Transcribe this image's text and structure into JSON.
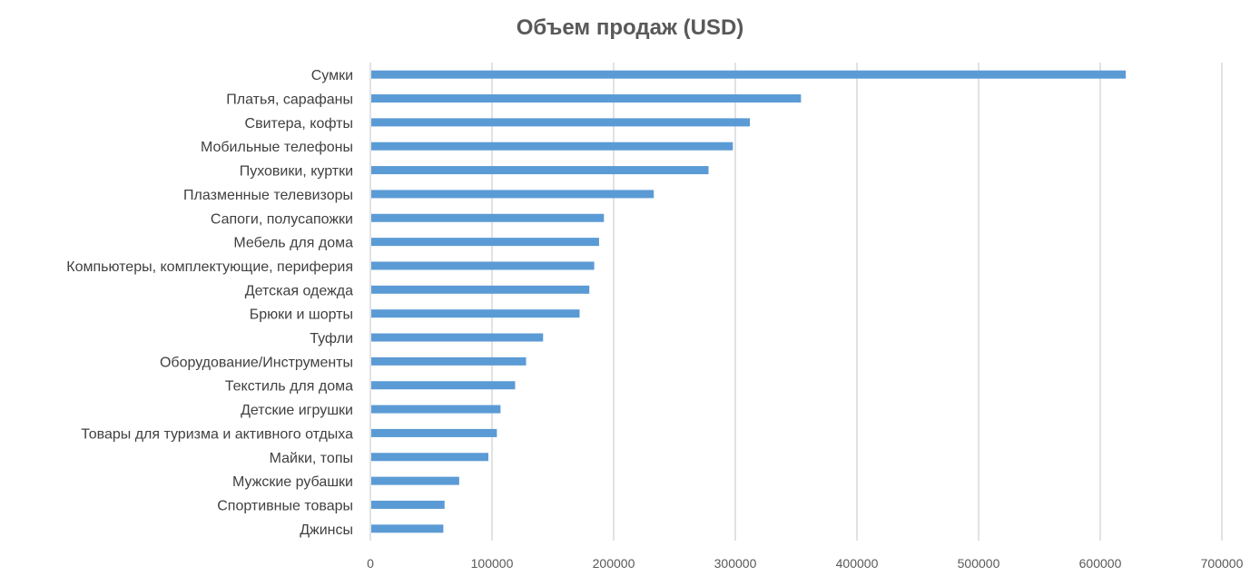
{
  "chart_data": {
    "type": "bar",
    "orientation": "horizontal",
    "title": "Объем продаж (USD)",
    "xlabel": "",
    "ylabel": "",
    "xlim": [
      0,
      700000
    ],
    "x_ticks": [
      "0",
      "100000",
      "200000",
      "300000",
      "400000",
      "500000",
      "600000",
      "700000"
    ],
    "grid": true,
    "bar_color": "#5B9BD5",
    "categories": [
      "Сумки",
      "Платья, сарафаны",
      "Свитера, кофты",
      "Мобильные телефоны",
      "Пуховики, куртки",
      "Плазменные телевизоры",
      "Сапоги, полусапожки",
      "Мебель для дома",
      "Компьютеры, комплектующие, периферия",
      "Детская одежда",
      "Брюки и шорты",
      "Туфли",
      "Оборудование/Инструменты",
      "Текстиль для дома",
      "Детские игрушки",
      "Товары для туризма и активного отдыха",
      "Майки, топы",
      "Мужские рубашки",
      "Спортивные товары",
      "Джинсы"
    ],
    "values": [
      621000,
      354000,
      312000,
      298000,
      278000,
      233000,
      192000,
      188000,
      184000,
      180000,
      172000,
      142000,
      128000,
      119000,
      107000,
      104000,
      97000,
      73000,
      61000,
      60000
    ]
  }
}
